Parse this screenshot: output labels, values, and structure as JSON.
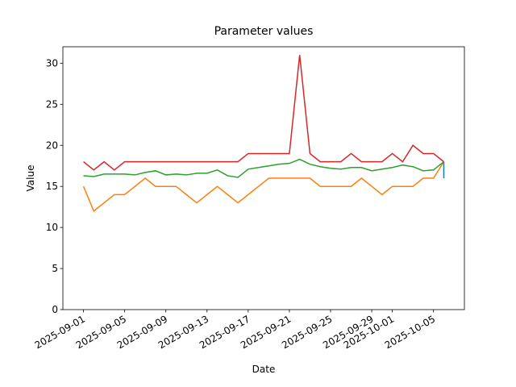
{
  "chart_data": {
    "type": "line",
    "title": "Parameter values",
    "xlabel": "Date",
    "ylabel": "Value",
    "x": [
      "2025-09-01",
      "2025-09-02",
      "2025-09-03",
      "2025-09-04",
      "2025-09-05",
      "2025-09-06",
      "2025-09-07",
      "2025-09-08",
      "2025-09-09",
      "2025-09-10",
      "2025-09-11",
      "2025-09-12",
      "2025-09-13",
      "2025-09-14",
      "2025-09-15",
      "2025-09-16",
      "2025-09-17",
      "2025-09-18",
      "2025-09-19",
      "2025-09-20",
      "2025-09-21",
      "2025-09-22",
      "2025-09-23",
      "2025-09-24",
      "2025-09-25",
      "2025-09-26",
      "2025-09-27",
      "2025-09-28",
      "2025-09-29",
      "2025-09-30",
      "2025-10-01",
      "2025-10-02",
      "2025-10-03",
      "2025-10-04",
      "2025-10-05",
      "2025-10-06"
    ],
    "series": [
      {
        "color": "#1f77b4",
        "x": [
          "2025-10-06",
          "2025-10-06"
        ],
        "values": [
          16,
          18
        ]
      },
      {
        "color": "#ff7f0e",
        "values": [
          15,
          12,
          13,
          14,
          14,
          15,
          16,
          15,
          15,
          15,
          14,
          13,
          14,
          15,
          14,
          13,
          14,
          15,
          16,
          16,
          16,
          16,
          16,
          15,
          15,
          15,
          15,
          16,
          15,
          14,
          15,
          15,
          15,
          16,
          16,
          18
        ]
      },
      {
        "color": "#2ca02c",
        "values": [
          16.3,
          16.2,
          16.5,
          16.5,
          16.5,
          16.4,
          16.7,
          16.9,
          16.4,
          16.5,
          16.4,
          16.6,
          16.6,
          17.0,
          16.3,
          16.1,
          17.1,
          17.3,
          17.5,
          17.7,
          17.8,
          18.3,
          17.7,
          17.4,
          17.2,
          17.1,
          17.3,
          17.3,
          16.9,
          17.1,
          17.3,
          17.6,
          17.4,
          16.9,
          17.0,
          18.0
        ]
      },
      {
        "color": "#d62728",
        "values": [
          18,
          17,
          18,
          17,
          18,
          18,
          18,
          18,
          18,
          18,
          18,
          18,
          18,
          18,
          18,
          18,
          19,
          19,
          19,
          19,
          19,
          31,
          19,
          18,
          18,
          18,
          19,
          18,
          18,
          18,
          19,
          18,
          20,
          19,
          19,
          18
        ]
      }
    ],
    "xlim": [
      "2025-08-30",
      "2025-10-08"
    ],
    "xticks": [
      "2025-09-01",
      "2025-09-05",
      "2025-09-09",
      "2025-09-13",
      "2025-09-17",
      "2025-09-21",
      "2025-09-25",
      "2025-09-29",
      "2025-10-01",
      "2025-10-05"
    ],
    "ylim": [
      0,
      32
    ],
    "yticks": [
      0,
      5,
      10,
      15,
      20,
      25,
      30
    ]
  }
}
